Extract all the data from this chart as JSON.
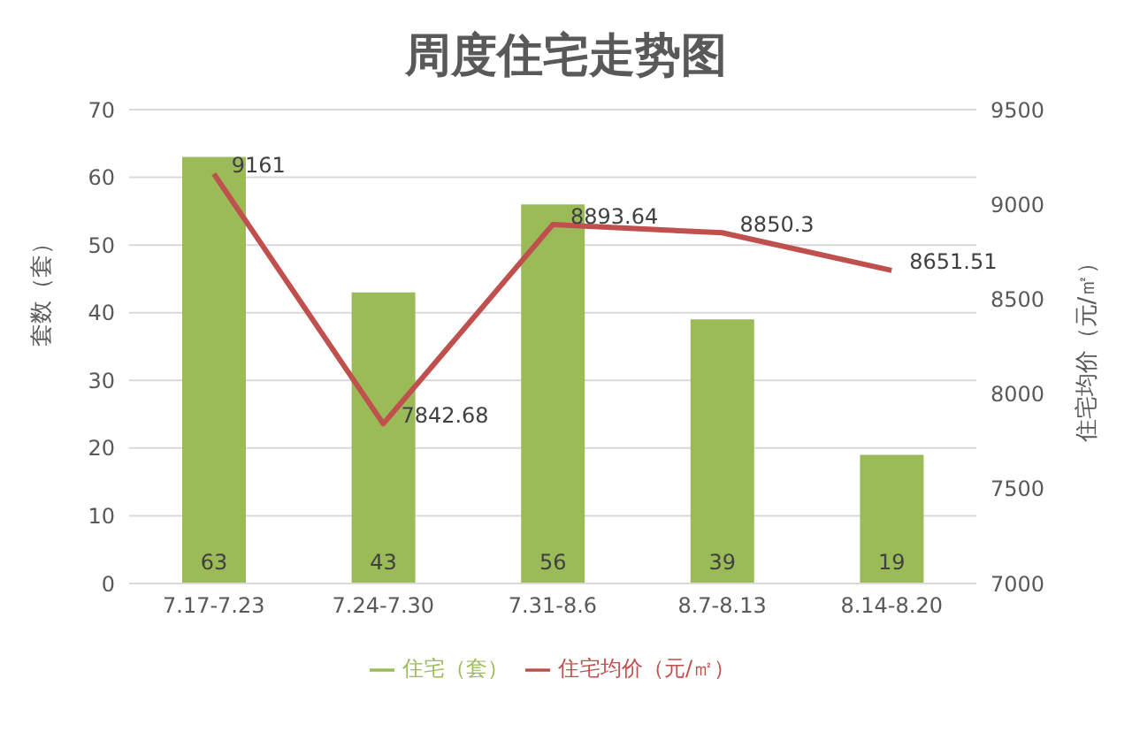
{
  "chart_data": {
    "type": "bar",
    "title": "周度住宅走势图",
    "ylabel": "套数（套）",
    "y2label": "住宅均价（元/㎡）",
    "categories": [
      "7.17-7.23",
      "7.24-7.30",
      "7.31-8.6",
      "8.7-8.13",
      "8.14-8.20"
    ],
    "series": [
      {
        "name": "住宅（套）",
        "color": "#9bbb59",
        "values": [
          63,
          43,
          56,
          39,
          19
        ]
      },
      {
        "name": "住宅均价（元/㎡）",
        "type": "line",
        "axis": "y2",
        "color": "#c0504d",
        "values": [
          9161,
          7842.68,
          8893.64,
          8850.3,
          8651.51
        ]
      }
    ],
    "ylim": [
      0,
      70
    ],
    "yticks": [
      0,
      10,
      20,
      30,
      40,
      50,
      60,
      70
    ],
    "y2lim": [
      7000,
      9500
    ],
    "y2ticks": [
      7000,
      7500,
      8000,
      8500,
      9000,
      9500
    ],
    "grid": "y",
    "legend": "bottom",
    "data_labels": true,
    "marker": "none"
  }
}
